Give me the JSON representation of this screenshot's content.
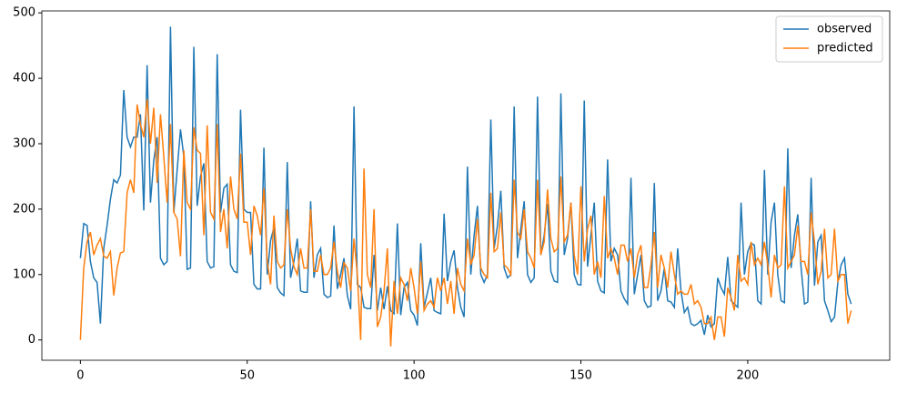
{
  "chart_data": {
    "type": "line",
    "x": [
      0,
      1,
      2,
      3,
      4,
      5,
      6,
      7,
      8,
      9,
      10,
      11,
      12,
      13,
      14,
      15,
      16,
      17,
      18,
      19,
      20,
      21,
      22,
      23,
      24,
      25,
      26,
      27,
      28,
      29,
      30,
      31,
      32,
      33,
      34,
      35,
      36,
      37,
      38,
      39,
      40,
      41,
      42,
      43,
      44,
      45,
      46,
      47,
      48,
      49,
      50,
      51,
      52,
      53,
      54,
      55,
      56,
      57,
      58,
      59,
      60,
      61,
      62,
      63,
      64,
      65,
      66,
      67,
      68,
      69,
      70,
      71,
      72,
      73,
      74,
      75,
      76,
      77,
      78,
      79,
      80,
      81,
      82,
      83,
      84,
      85,
      86,
      87,
      88,
      89,
      90,
      91,
      92,
      93,
      94,
      95,
      96,
      97,
      98,
      99,
      100,
      101,
      102,
      103,
      104,
      105,
      106,
      107,
      108,
      109,
      110,
      111,
      112,
      113,
      114,
      115,
      116,
      117,
      118,
      119,
      120,
      121,
      122,
      123,
      124,
      125,
      126,
      127,
      128,
      129,
      130,
      131,
      132,
      133,
      134,
      135,
      136,
      137,
      138,
      139,
      140,
      141,
      142,
      143,
      144,
      145,
      146,
      147,
      148,
      149,
      150,
      151,
      152,
      153,
      154,
      155,
      156,
      157,
      158,
      159,
      160,
      161,
      162,
      163,
      164,
      165,
      166,
      167,
      168,
      169,
      170,
      171,
      172,
      173,
      174,
      175,
      176,
      177,
      178,
      179,
      180,
      181,
      182,
      183,
      184,
      185,
      186,
      187,
      188,
      189,
      190,
      191,
      192,
      193,
      194,
      195,
      196,
      197,
      198,
      199,
      200,
      201,
      202,
      203,
      204,
      205,
      206,
      207,
      208,
      209,
      210,
      211,
      212,
      213,
      214,
      215,
      216,
      217,
      218,
      219,
      220,
      221,
      222,
      223,
      224,
      225,
      226,
      227,
      228,
      229,
      230,
      231
    ],
    "series": [
      {
        "name": "observed",
        "color": "#1f77b4",
        "values": [
          125,
          178,
          175,
          120,
          95,
          88,
          25,
          140,
          175,
          215,
          245,
          240,
          252,
          382,
          310,
          295,
          310,
          310,
          345,
          198,
          420,
          210,
          275,
          310,
          125,
          115,
          120,
          479,
          195,
          260,
          322,
          280,
          108,
          110,
          448,
          205,
          250,
          270,
          120,
          110,
          112,
          437,
          195,
          232,
          238,
          115,
          105,
          103,
          352,
          200,
          195,
          195,
          85,
          78,
          78,
          294,
          100,
          152,
          172,
          80,
          72,
          68,
          272,
          95,
          120,
          155,
          75,
          73,
          73,
          212,
          95,
          130,
          140,
          70,
          65,
          67,
          175,
          78,
          100,
          125,
          68,
          47,
          357,
          85,
          80,
          50,
          48,
          48,
          130,
          45,
          80,
          47,
          82,
          45,
          40,
          178,
          38,
          80,
          88,
          45,
          38,
          22,
          148,
          50,
          72,
          95,
          45,
          42,
          40,
          193,
          90,
          120,
          137,
          80,
          50,
          35,
          265,
          100,
          160,
          205,
          100,
          88,
          100,
          337,
          140,
          175,
          228,
          110,
          95,
          100,
          357,
          125,
          170,
          212,
          100,
          88,
          95,
          372,
          130,
          160,
          208,
          105,
          90,
          88,
          377,
          130,
          155,
          210,
          100,
          85,
          84,
          366,
          112,
          160,
          210,
          90,
          75,
          72,
          276,
          120,
          140,
          130,
          75,
          63,
          55,
          248,
          70,
          100,
          130,
          60,
          50,
          52,
          240,
          60,
          75,
          110,
          60,
          58,
          50,
          140,
          75,
          42,
          50,
          25,
          22,
          25,
          30,
          8,
          38,
          20,
          25,
          95,
          80,
          70,
          127,
          60,
          55,
          50,
          210,
          100,
          135,
          148,
          145,
          60,
          55,
          260,
          100,
          180,
          210,
          100,
          60,
          57,
          293,
          110,
          160,
          192,
          110,
          55,
          58,
          248,
          83,
          150,
          160,
          60,
          45,
          28,
          35,
          88,
          115,
          125,
          70,
          55
        ]
      },
      {
        "name": "predicted",
        "color": "#ff7f0e",
        "values": [
          0,
          110,
          150,
          165,
          130,
          145,
          155,
          128,
          125,
          135,
          68,
          110,
          133,
          135,
          225,
          245,
          225,
          360,
          330,
          310,
          368,
          300,
          355,
          240,
          345,
          280,
          210,
          330,
          195,
          185,
          128,
          290,
          210,
          200,
          325,
          290,
          285,
          160,
          328,
          195,
          185,
          330,
          165,
          200,
          140,
          250,
          200,
          185,
          285,
          180,
          180,
          130,
          205,
          190,
          160,
          232,
          120,
          85,
          190,
          120,
          110,
          115,
          200,
          140,
          112,
          100,
          140,
          110,
          110,
          200,
          105,
          105,
          130,
          100,
          100,
          110,
          150,
          105,
          80,
          118,
          110,
          75,
          155,
          100,
          0,
          262,
          100,
          80,
          200,
          20,
          35,
          75,
          140,
          -10,
          90,
          40,
          95,
          85,
          60,
          110,
          80,
          40,
          120,
          45,
          55,
          60,
          50,
          95,
          75,
          95,
          55,
          90,
          40,
          110,
          85,
          75,
          155,
          115,
          130,
          185,
          110,
          100,
          95,
          225,
          135,
          140,
          195,
          115,
          110,
          100,
          245,
          165,
          155,
          200,
          135,
          125,
          110,
          245,
          130,
          150,
          230,
          155,
          135,
          140,
          250,
          150,
          160,
          210,
          130,
          100,
          235,
          120,
          170,
          190,
          100,
          120,
          95,
          220,
          125,
          140,
          125,
          100,
          145,
          145,
          120,
          140,
          95,
          130,
          145,
          80,
          80,
          115,
          165,
          80,
          130,
          110,
          80,
          135,
          100,
          70,
          75,
          70,
          70,
          85,
          55,
          60,
          50,
          25,
          25,
          35,
          0,
          35,
          35,
          5,
          80,
          65,
          45,
          130,
          90,
          95,
          85,
          150,
          115,
          125,
          115,
          150,
          115,
          65,
          130,
          110,
          115,
          235,
          110,
          120,
          130,
          175,
          120,
          120,
          100,
          195,
          150,
          85,
          105,
          170,
          95,
          100,
          170,
          90,
          100,
          100,
          25,
          45
        ]
      }
    ],
    "xlim": [
      -11.55,
      242.55
    ],
    "ylim": [
      -31,
      503
    ],
    "xticks": [
      0,
      50,
      100,
      150,
      200
    ],
    "yticks": [
      0,
      100,
      200,
      300,
      400,
      500
    ],
    "legend": "upper right"
  }
}
